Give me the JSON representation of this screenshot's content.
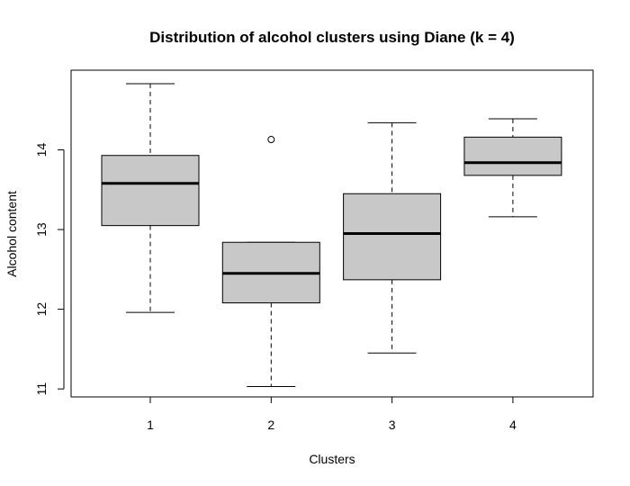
{
  "chart_data": {
    "type": "boxplot",
    "title": "Distribution of alcohol clusters using Diane (k = 4)",
    "xlabel": "Clusters",
    "ylabel": "Alcohol content",
    "categories": [
      "1",
      "2",
      "3",
      "4"
    ],
    "yticks": [
      "11",
      "12",
      "13",
      "14"
    ],
    "ylim": [
      10.9,
      15.0
    ],
    "boxes": [
      {
        "category": "1",
        "whisker_low": 11.96,
        "q1": 13.05,
        "median": 13.58,
        "q3": 13.93,
        "whisker_high": 14.83,
        "outliers": []
      },
      {
        "category": "2",
        "whisker_low": 11.03,
        "q1": 12.08,
        "median": 12.45,
        "q3": 12.84,
        "whisker_high": 12.84,
        "outliers": [
          14.13
        ]
      },
      {
        "category": "3",
        "whisker_low": 11.45,
        "q1": 12.37,
        "median": 12.95,
        "q3": 13.45,
        "whisker_high": 14.34,
        "outliers": []
      },
      {
        "category": "4",
        "whisker_low": 13.16,
        "q1": 13.68,
        "median": 13.84,
        "q3": 14.16,
        "whisker_high": 14.39,
        "outliers": []
      }
    ],
    "box_fill": "#c8c8c8",
    "line_color": "#000000"
  }
}
